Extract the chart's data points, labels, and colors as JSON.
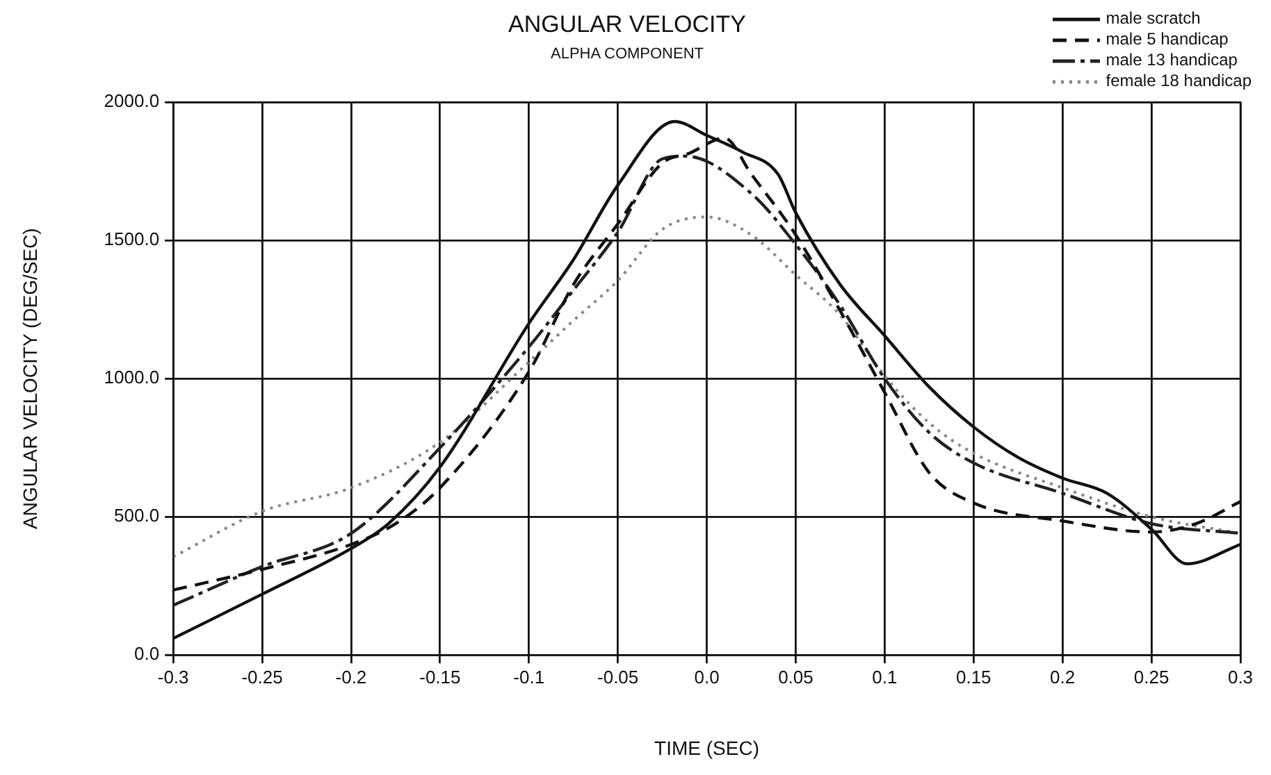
{
  "chart_data": {
    "type": "line",
    "title": "ANGULAR VELOCITY",
    "subtitle": "ALPHA COMPONENT",
    "xlabel": "TIME (SEC)",
    "ylabel": "ANGULAR VELOCITY (DEG/SEC)",
    "xlim": [
      -0.3,
      0.3
    ],
    "xticks": [
      -0.3,
      -0.25,
      -0.2,
      -0.15,
      -0.1,
      -0.05,
      {
        "value": 0,
        "label": "0.0"
      },
      0.05,
      0.1,
      0.15,
      0.2,
      0.25,
      0.3
    ],
    "ylim": [
      0,
      2000
    ],
    "yticks": [
      {
        "value": 0,
        "label": "0.0"
      },
      {
        "value": 500,
        "label": "500.0"
      },
      {
        "value": 1000,
        "label": "1000.0"
      },
      {
        "value": 1500,
        "label": "1500.0"
      },
      {
        "value": 2000,
        "label": "2000.0"
      }
    ],
    "grid": true,
    "legend": "top right",
    "marker": "none",
    "series": [
      {
        "name": "male scratch",
        "color": "#111111",
        "line_style": "solid",
        "x": [
          -0.3,
          -0.25,
          -0.2,
          -0.179,
          -0.15,
          -0.1,
          -0.075,
          -0.05,
          -0.018,
          0,
          0.02,
          0.04,
          0.05,
          0.075,
          0.1,
          0.125,
          0.15,
          0.175,
          0.2,
          0.225,
          0.25,
          0.27,
          0.3
        ],
        "values": [
          60,
          220,
          385,
          475,
          680,
          1200,
          1430,
          1700,
          1930,
          1880,
          1820,
          1740,
          1600,
          1340,
          1155,
          970,
          825,
          715,
          640,
          585,
          455,
          330,
          400
        ]
      },
      {
        "name": "male 5 handicap",
        "color": "#111111",
        "line_style": "dashed",
        "x": [
          -0.3,
          -0.25,
          -0.2,
          -0.175,
          -0.15,
          -0.1,
          -0.075,
          -0.05,
          -0.025,
          -0.01,
          0.01,
          0.025,
          0.05,
          0.075,
          0.1,
          0.125,
          0.15,
          0.2,
          0.25,
          0.275,
          0.3
        ],
        "values": [
          235,
          310,
          400,
          475,
          605,
          1025,
          1340,
          1560,
          1780,
          1815,
          1870,
          1740,
          1520,
          1245,
          950,
          660,
          550,
          485,
          445,
          475,
          555
        ]
      },
      {
        "name": "male 13 handicap",
        "color": "#222222",
        "line_style": "dashed",
        "x": [
          -0.3,
          -0.25,
          -0.2,
          -0.15,
          -0.1,
          -0.075,
          -0.05,
          -0.025,
          -0.012,
          0.025,
          0.05,
          0.075,
          0.1,
          0.125,
          0.15,
          0.2,
          0.25,
          0.3
        ],
        "values": [
          180,
          320,
          440,
          750,
          1115,
          1320,
          1530,
          1795,
          1805,
          1670,
          1485,
          1265,
          1000,
          805,
          695,
          585,
          475,
          440
        ]
      },
      {
        "name": "female 18 handicap",
        "color": "#888888",
        "line_style": "dotted",
        "x": [
          -0.3,
          -0.25,
          -0.2,
          -0.15,
          -0.1,
          -0.075,
          -0.05,
          -0.025,
          0,
          0.025,
          0.05,
          0.075,
          0.1,
          0.125,
          0.15,
          0.2,
          0.25,
          0.3
        ],
        "values": [
          355,
          520,
          605,
          770,
          1060,
          1210,
          1355,
          1540,
          1585,
          1520,
          1375,
          1230,
          1010,
          840,
          730,
          605,
          500,
          440
        ]
      }
    ]
  }
}
